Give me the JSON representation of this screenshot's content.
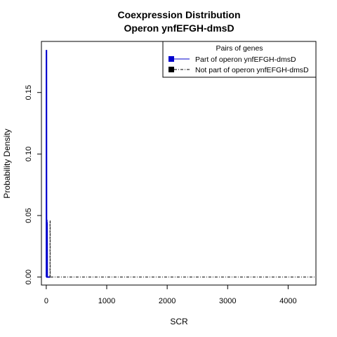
{
  "chart_data": {
    "type": "line",
    "title": "Coexpression Distribution",
    "subtitle": "Operon ynfEFGH-dmsD",
    "xlabel": "SCR",
    "ylabel": "Probability Density",
    "xlim": [
      -80,
      4460
    ],
    "ylim": [
      -0.0065,
      0.1915
    ],
    "x_ticks": [
      0,
      1000,
      2000,
      3000,
      4000
    ],
    "x_tick_labels": [
      "0",
      "1000",
      "2000",
      "3000",
      "4000"
    ],
    "y_ticks": [
      0.0,
      0.05,
      0.1,
      0.15
    ],
    "y_tick_labels": [
      "0.00",
      "0.05",
      "0.10",
      "0.15"
    ],
    "grid": false,
    "legend": {
      "title": "Pairs of genes",
      "position": "top-right",
      "entries": [
        {
          "label": "Part of operon ynfEFGH-dmsD",
          "color": "#0000cd",
          "line": "solid"
        },
        {
          "label": "Not part of operon ynfEFGH-dmsD",
          "color": "#000000",
          "line": "dashdot"
        }
      ]
    },
    "series": [
      {
        "name": "Part of operon ynfEFGH-dmsD",
        "color": "#0000cd",
        "style": "solid",
        "x": [
          0,
          2,
          2,
          4,
          5,
          6,
          7,
          9,
          10,
          12,
          14,
          16,
          18,
          20,
          22,
          24,
          26,
          28,
          30,
          32,
          34,
          36,
          38,
          40,
          42,
          44,
          46,
          48,
          50,
          52,
          54,
          56,
          58,
          60,
          62,
          64
        ],
        "y": [
          0.0,
          0.0,
          0.184,
          0.184,
          0.049,
          0.02,
          0.046,
          0.046,
          0.022,
          0.044,
          0.044,
          0.0,
          0.0,
          0.0,
          0.0,
          0.0,
          0.0,
          0.0,
          0.0,
          0.0,
          0.0,
          0.0,
          0.0,
          0.0,
          0.0,
          0.0,
          0.0,
          0.0,
          0.0,
          0.0,
          0.0,
          0.0,
          0.0,
          0.0,
          0.0,
          0.0
        ]
      },
      {
        "name": "Not part of operon ynfEFGH-dmsD",
        "color": "#000000",
        "style": "dashdot",
        "x": [
          60,
          62,
          62,
          64,
          64,
          4460
        ],
        "y": [
          0.0,
          0.0,
          0.046,
          0.046,
          0.0,
          0.0
        ]
      }
    ]
  }
}
